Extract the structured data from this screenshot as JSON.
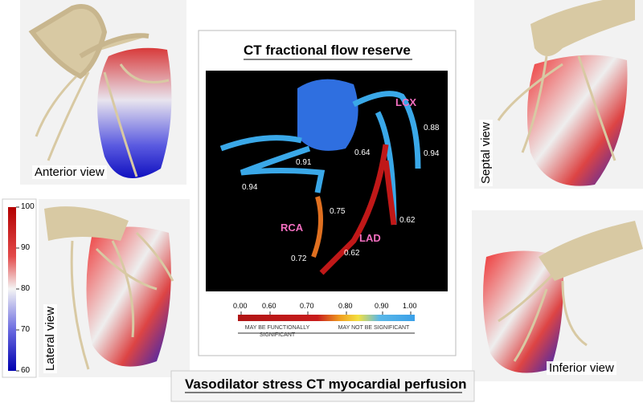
{
  "panels": {
    "anterior": "Anterior view",
    "septal": "Septal view",
    "lateral": "Lateral view",
    "inferior": "Inferior view"
  },
  "ffr": {
    "title": "CT fractional flow reserve",
    "vessels": [
      "LCX",
      "RCA",
      "LAD"
    ],
    "values": [
      0.88,
      0.94,
      0.64,
      0.91,
      0.94,
      0.75,
      0.72,
      0.62,
      0.62
    ],
    "scale": {
      "ticks": [
        {
          "value": 0,
          "label": "0.00"
        },
        {
          "value": 0.6,
          "label": "0.60"
        },
        {
          "value": 0.7,
          "label": "0.70"
        },
        {
          "value": 0.8,
          "label": "0.80"
        },
        {
          "value": 0.9,
          "label": "0.90"
        },
        {
          "value": 1,
          "label": "1.00"
        }
      ],
      "low": "MAY BE FUNCTIONALLY SIGNIFICANT",
      "high": "MAY NOT BE SIGNIFICANT"
    }
  },
  "perfusion": {
    "title": "Vasodilator stress CT myocardial perfusion",
    "colorbar_ticks": [
      100,
      90,
      80,
      70,
      60
    ]
  }
}
